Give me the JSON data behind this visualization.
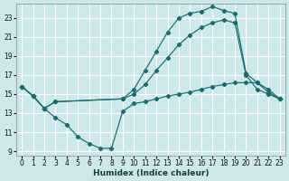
{
  "xlabel": "Humidex (Indice chaleur)",
  "bg_color": "#cce8ea",
  "grid_color": "#ffffff",
  "line_color": "#1a6b6b",
  "xlim": [
    -0.5,
    23.5
  ],
  "ylim": [
    8.5,
    24.5
  ],
  "xticks": [
    0,
    1,
    2,
    3,
    4,
    5,
    6,
    7,
    8,
    9,
    10,
    11,
    12,
    13,
    14,
    15,
    16,
    17,
    18,
    19,
    20,
    21,
    22,
    23
  ],
  "yticks": [
    9,
    11,
    13,
    15,
    17,
    19,
    21,
    23
  ],
  "curve_upper_x": [
    0,
    1,
    2,
    3,
    9,
    10,
    11,
    12,
    13,
    14,
    15,
    16,
    17,
    18,
    19,
    20,
    21,
    22,
    23
  ],
  "curve_upper_y": [
    15.8,
    14.8,
    13.5,
    14.2,
    14.5,
    15.5,
    17.5,
    19.5,
    21.5,
    23.0,
    23.5,
    23.7,
    24.2,
    23.8,
    23.5,
    17.2,
    16.2,
    15.2,
    14.5
  ],
  "curve_mid_x": [
    0,
    1,
    2,
    3,
    9,
    10,
    11,
    12,
    13,
    14,
    15,
    16,
    17,
    18,
    19,
    20,
    21,
    22,
    23
  ],
  "curve_mid_y": [
    15.8,
    14.8,
    13.5,
    14.2,
    14.5,
    15.0,
    16.0,
    17.5,
    18.8,
    20.2,
    21.2,
    22.0,
    22.5,
    22.8,
    22.5,
    17.0,
    15.5,
    15.0,
    14.5
  ],
  "curve_low_x": [
    0,
    1,
    2,
    3,
    4,
    5,
    6,
    7,
    8,
    9,
    10,
    11,
    12,
    13,
    14,
    15,
    16,
    17,
    18,
    19,
    20,
    21,
    22,
    23
  ],
  "curve_low_y": [
    15.8,
    14.8,
    13.5,
    12.5,
    11.8,
    10.5,
    9.8,
    9.3,
    9.3,
    13.2,
    14.0,
    14.2,
    14.5,
    14.8,
    15.0,
    15.2,
    15.5,
    15.8,
    16.0,
    16.2,
    16.2,
    16.2,
    15.5,
    14.5
  ]
}
